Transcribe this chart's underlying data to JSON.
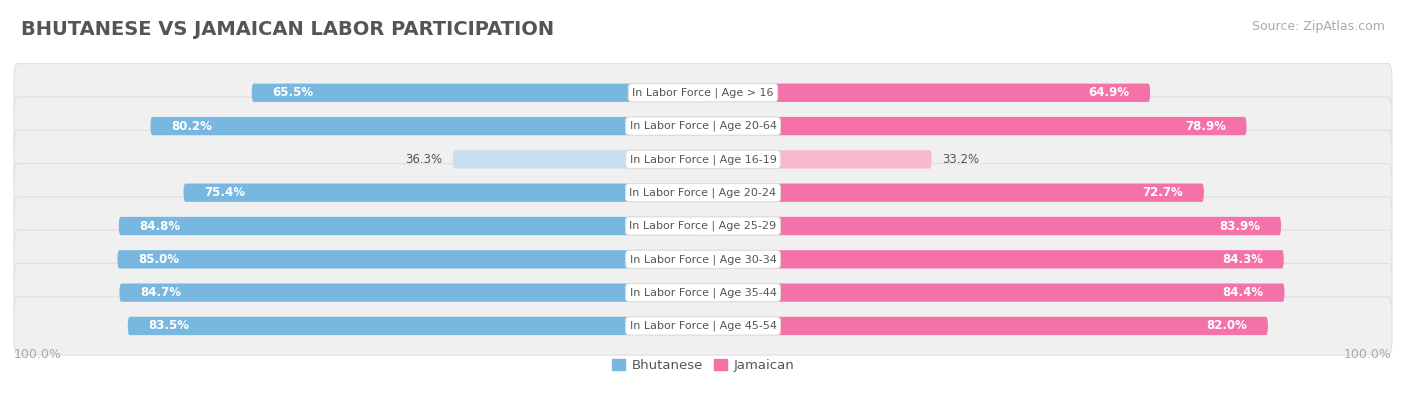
{
  "title": "BHUTANESE VS JAMAICAN LABOR PARTICIPATION",
  "source": "Source: ZipAtlas.com",
  "categories": [
    "In Labor Force | Age > 16",
    "In Labor Force | Age 20-64",
    "In Labor Force | Age 16-19",
    "In Labor Force | Age 20-24",
    "In Labor Force | Age 25-29",
    "In Labor Force | Age 30-34",
    "In Labor Force | Age 35-44",
    "In Labor Force | Age 45-54"
  ],
  "bhutanese": [
    65.5,
    80.2,
    36.3,
    75.4,
    84.8,
    85.0,
    84.7,
    83.5
  ],
  "jamaican": [
    64.9,
    78.9,
    33.2,
    72.7,
    83.9,
    84.3,
    84.4,
    82.0
  ],
  "bhutanese_color_full": "#78b8e0",
  "bhutanese_color_light": "#c8dff0",
  "jamaican_color_full": "#f472a8",
  "jamaican_color_light": "#f9b8d0",
  "row_bg": "#f0f0f0",
  "row_border": "#e0e0e0",
  "label_white": "#ffffff",
  "label_dark": "#555555",
  "center_label_color": "#555555",
  "axis_label_color": "#aaaaaa",
  "title_color": "#555555",
  "source_color": "#aaaaaa",
  "max_value": 100.0,
  "light_threshold": 50.0,
  "legend_bhutanese": "Bhutanese",
  "legend_jamaican": "Jamaican",
  "title_fontsize": 14,
  "bar_label_fontsize": 8.5,
  "cat_label_fontsize": 8.0,
  "axis_label_fontsize": 9.0,
  "legend_fontsize": 9.5
}
